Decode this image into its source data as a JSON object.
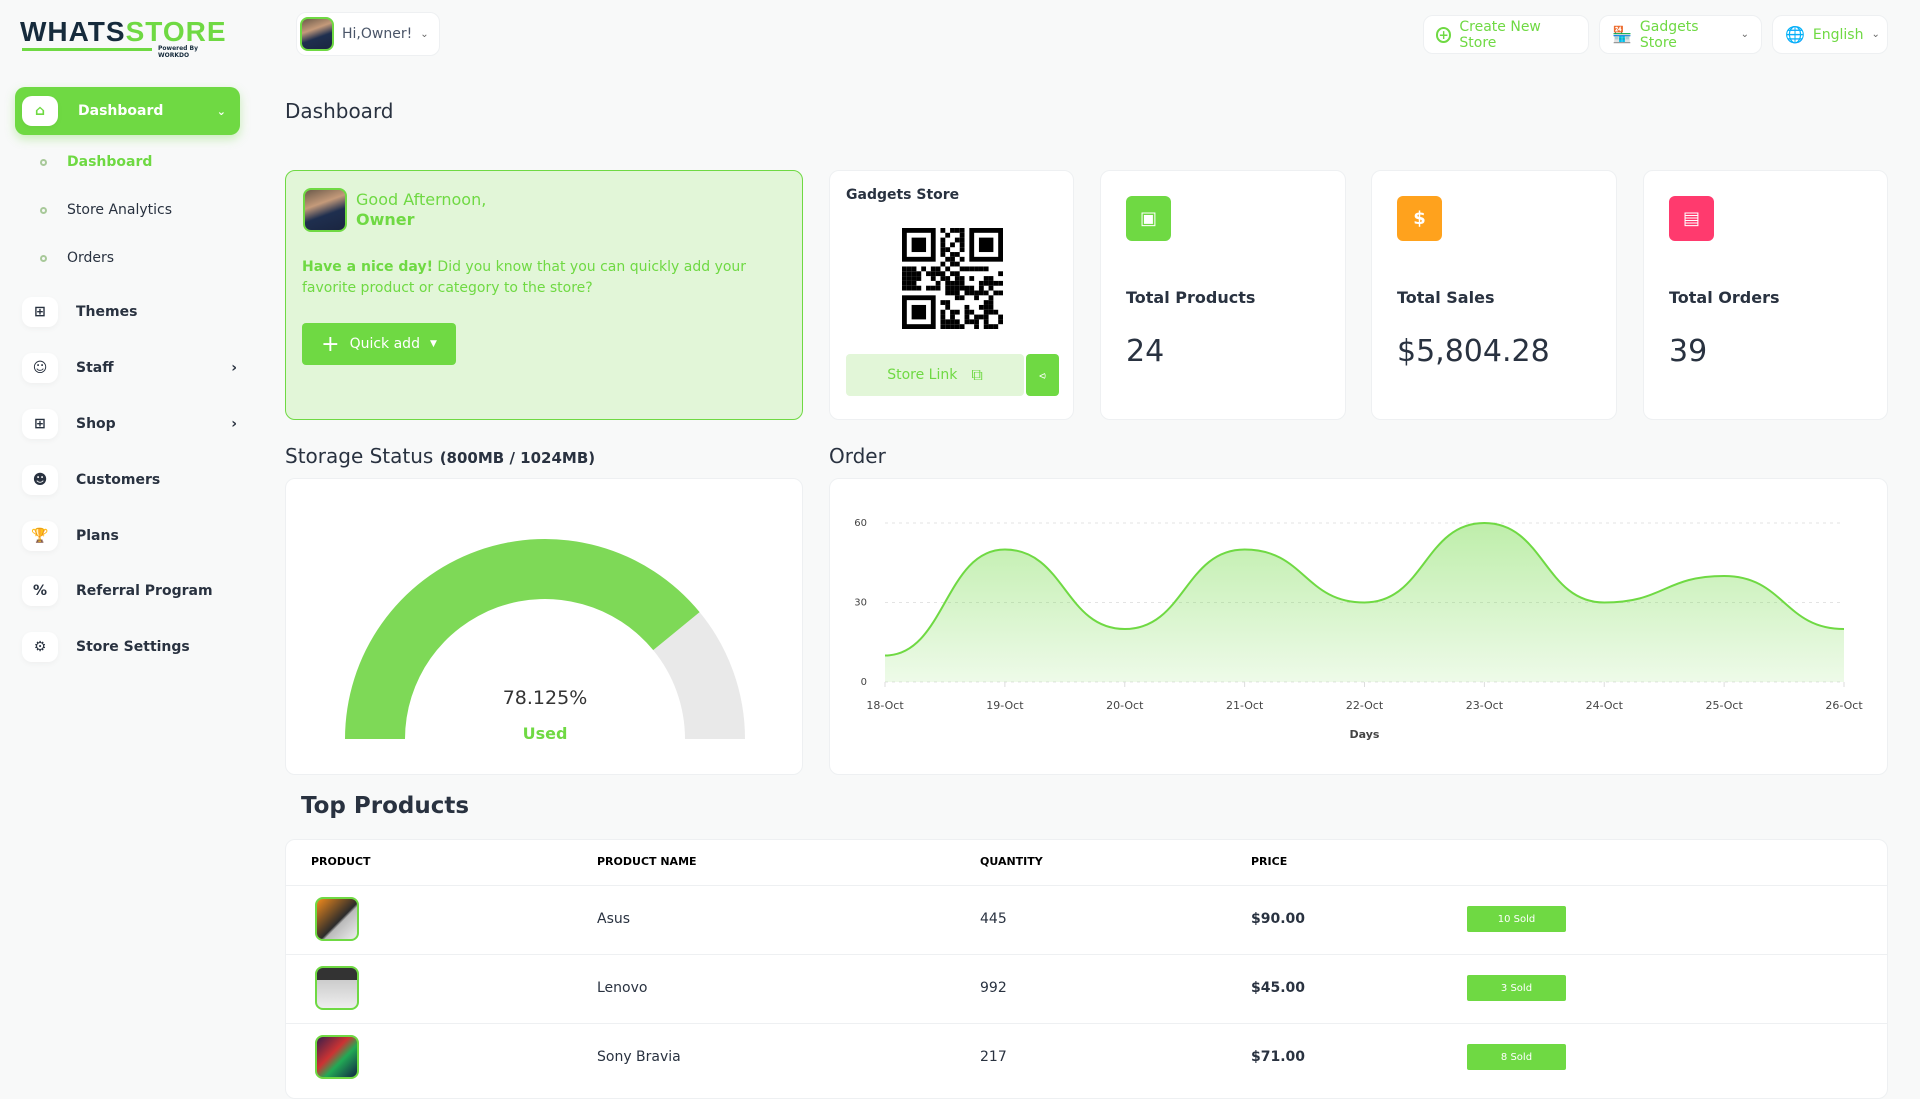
{
  "brand": {
    "name_part1": "WHATS",
    "name_part2": "STORE",
    "powered": "Powered By WORKDO"
  },
  "header": {
    "greeting": "Hi,Owner!",
    "create_store": "Create New Store",
    "store_select": "Gadgets Store",
    "language": "English"
  },
  "sidebar": {
    "active": "Dashboard",
    "sub_items": [
      "Dashboard",
      "Store Analytics",
      "Orders"
    ],
    "items": [
      {
        "label": "Themes",
        "icon": "grid-icon"
      },
      {
        "label": "Staff",
        "icon": "users-icon",
        "arrow": true
      },
      {
        "label": "Shop",
        "icon": "grid-icon",
        "arrow": true
      },
      {
        "label": "Customers",
        "icon": "user-icon"
      },
      {
        "label": "Plans",
        "icon": "trophy-icon"
      },
      {
        "label": "Referral Program",
        "icon": "discount-icon"
      },
      {
        "label": "Store Settings",
        "icon": "gear-icon"
      }
    ]
  },
  "page": {
    "title": "Dashboard"
  },
  "welcome": {
    "line1": "Good Afternoon,",
    "line2": "Owner",
    "bold": "Have a nice day!",
    "text": " Did you know that you can quickly add your favorite product or category to the store?",
    "button": "Quick add"
  },
  "store_card": {
    "title": "Gadgets Store",
    "link_label": "Store Link"
  },
  "stats": [
    {
      "title": "Total Products",
      "value": "24",
      "color": "#6fd943",
      "icon": "box-icon"
    },
    {
      "title": "Total Sales",
      "value": "$5,804.28",
      "color": "#ffa21d",
      "icon": "dollar-icon"
    },
    {
      "title": "Total Orders",
      "value": "39",
      "color": "#ff3a6e",
      "icon": "file-icon"
    }
  ],
  "storage": {
    "title": "Storage Status",
    "detail": "(800MB / 1024MB)",
    "percent_label": "78.125%",
    "used_label": "Used",
    "used_fraction": 0.78125
  },
  "order_chart": {
    "title": "Order"
  },
  "chart_data": {
    "type": "area",
    "x": [
      "18-Oct",
      "19-Oct",
      "20-Oct",
      "21-Oct",
      "22-Oct",
      "23-Oct",
      "24-Oct",
      "25-Oct",
      "26-Oct"
    ],
    "values": [
      10,
      50,
      20,
      50,
      30,
      60,
      30,
      40,
      20
    ],
    "yticks": [
      "0",
      "30",
      "60"
    ],
    "ylim": [
      0,
      60
    ],
    "xlabel": "Days",
    "ylabel": "",
    "grid": true,
    "color": "#6fd943"
  },
  "top_products": {
    "title": "Top Products",
    "headers": [
      "PRODUCT",
      "PRODUCT NAME",
      "QUANTITY",
      "PRICE"
    ],
    "rows": [
      {
        "name": "Asus",
        "qty": "445",
        "price": "$90.00",
        "sold": "10 Sold"
      },
      {
        "name": "Lenovo",
        "qty": "992",
        "price": "$45.00",
        "sold": "3 Sold"
      },
      {
        "name": "Sony Bravia",
        "qty": "217",
        "price": "$71.00",
        "sold": "8 Sold"
      }
    ]
  }
}
